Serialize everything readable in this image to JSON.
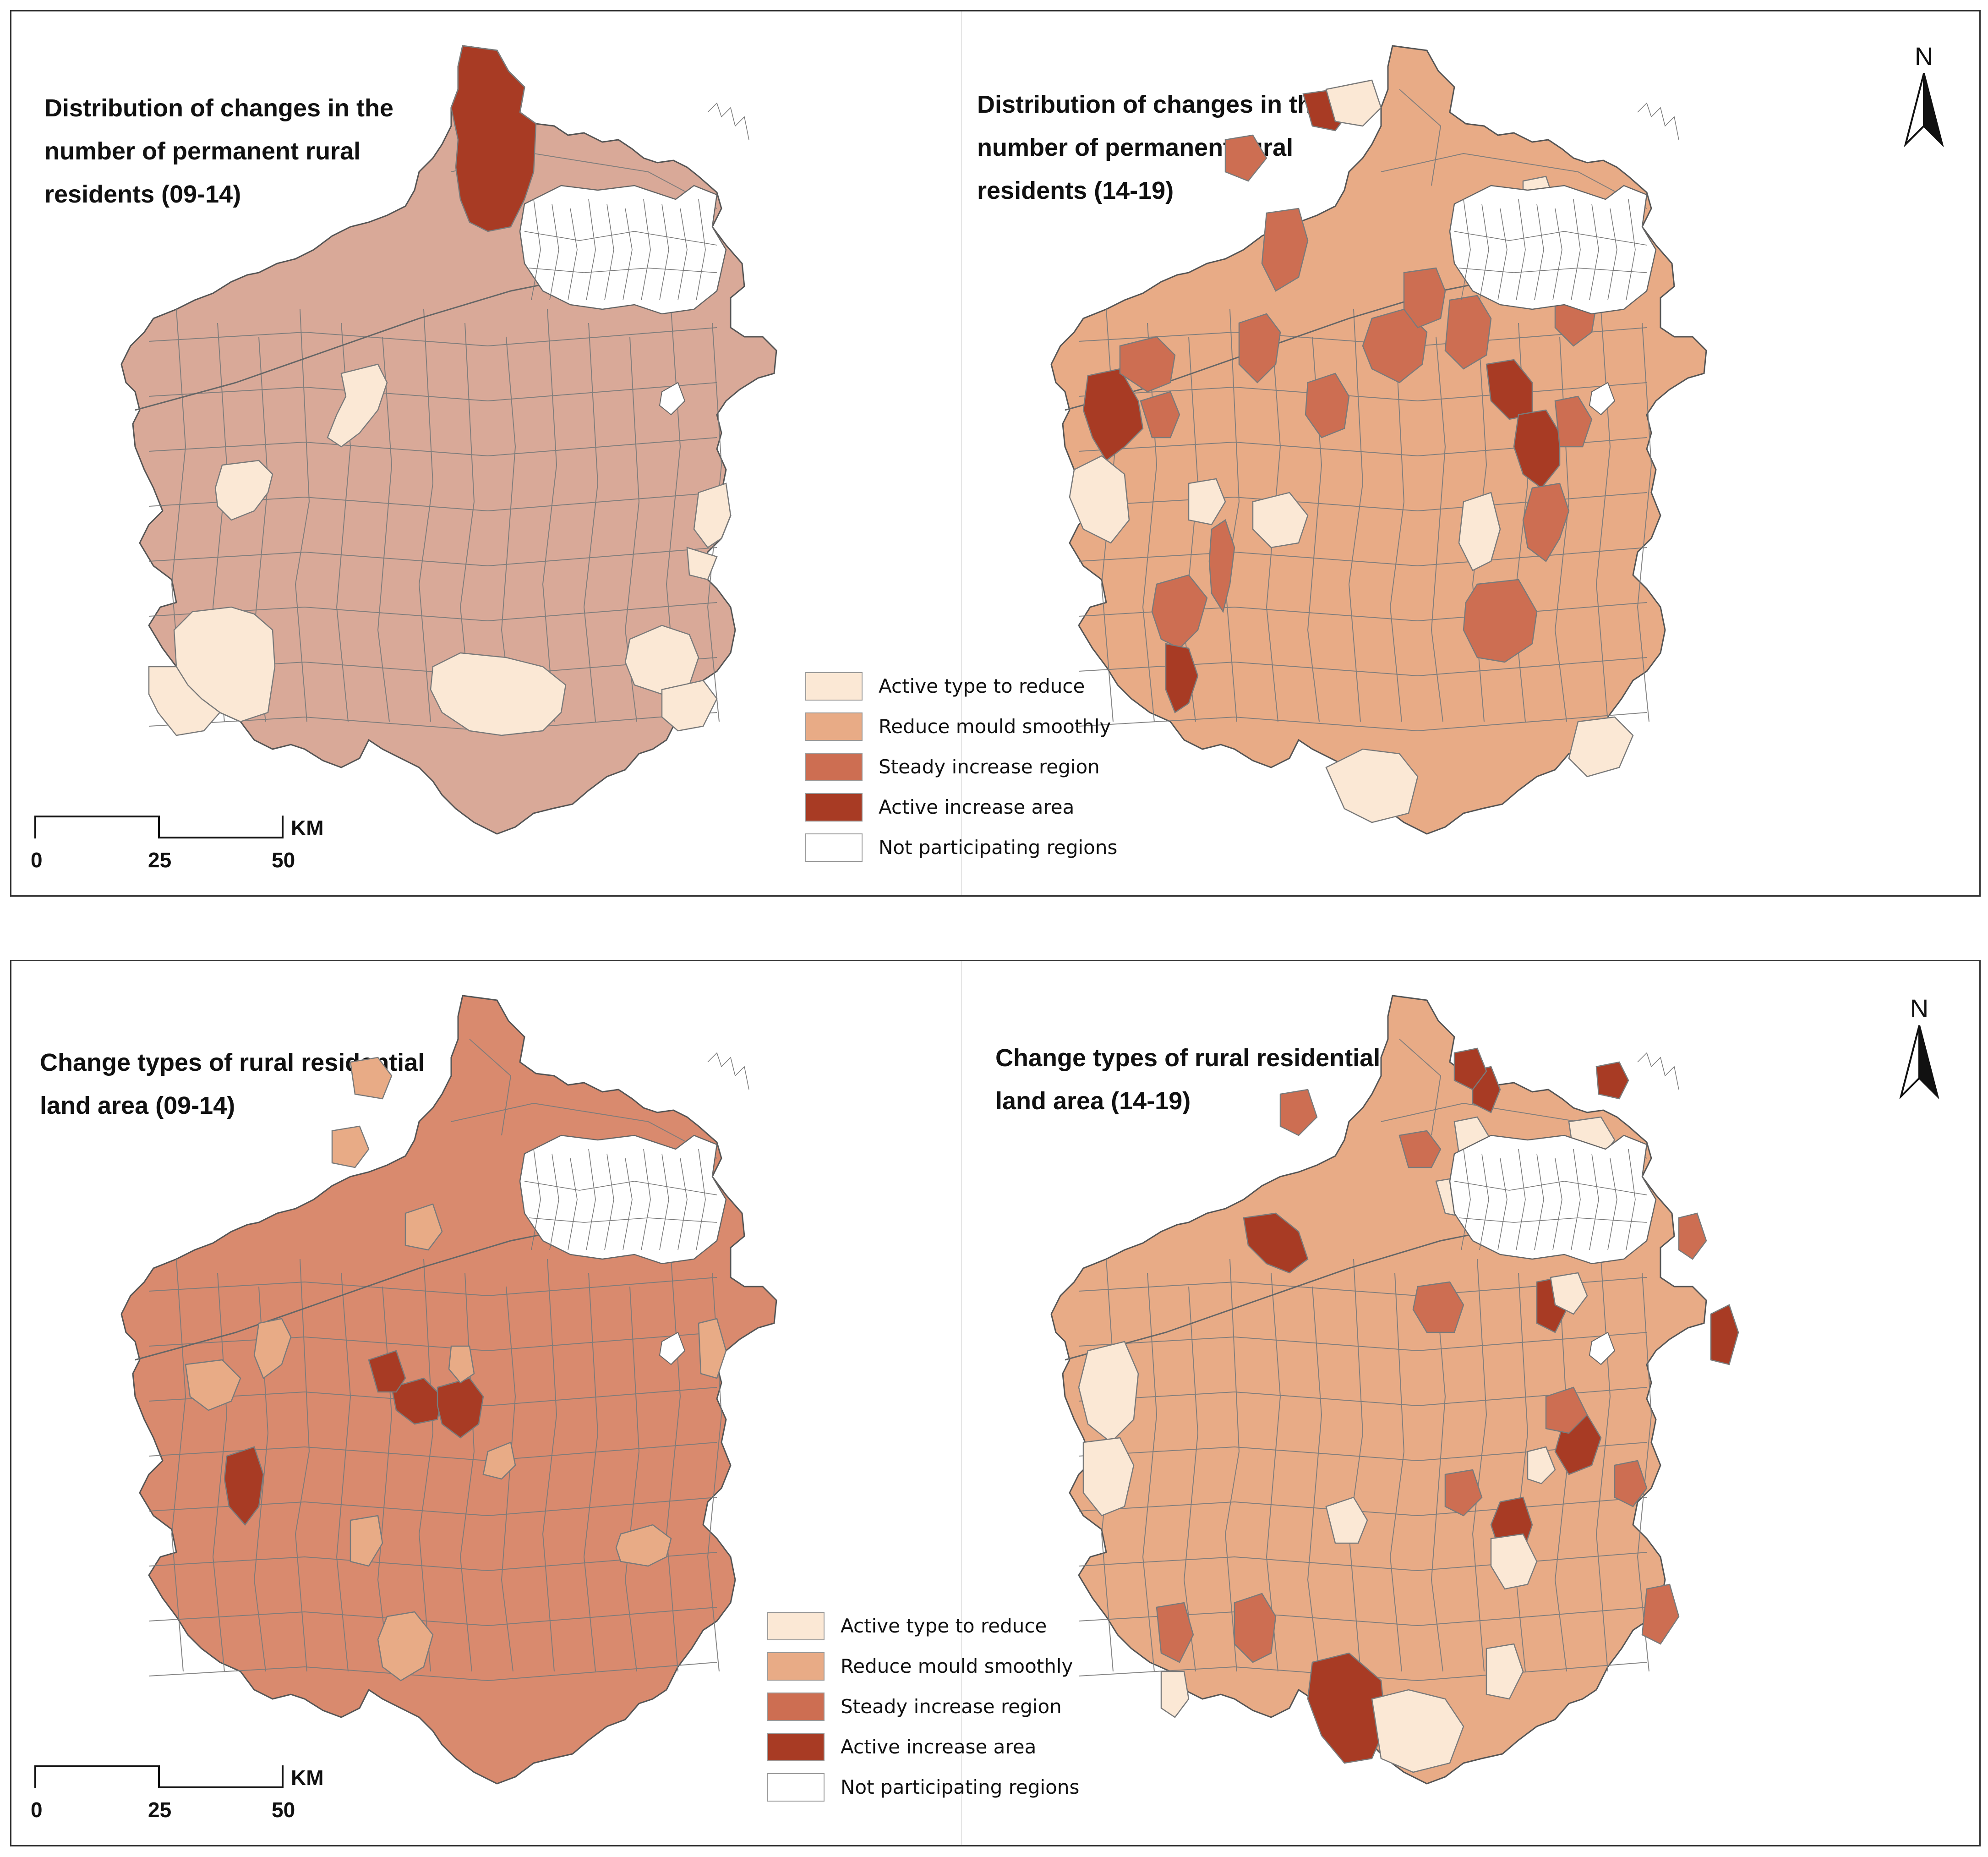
{
  "maps": [
    {
      "title": "Distribution of changes in the\nnumber of permanent rural\nresidents",
      "period": "(09-14)",
      "palette": "p1"
    },
    {
      "title": "Distribution of changes in the\nnumber of permanent rural\nresidents",
      "period": "(14-19)",
      "palette": "p2"
    },
    {
      "title": "Change types of rural residential\nland area",
      "period": "(09-14)",
      "palette": "p3"
    },
    {
      "title": "Change types of rural residential\nland area",
      "period": "(14-19)",
      "palette": "p4"
    }
  ],
  "legend": [
    {
      "label": "Active type to reduce",
      "color": "#fbe8d5"
    },
    {
      "label": "Reduce mould smoothly",
      "color": "#e8ab86"
    },
    {
      "label": "Steady increase region",
      "color": "#cd6e52"
    },
    {
      "label": "Active increase area",
      "color": "#a83b24"
    },
    {
      "label": "Not participating regions",
      "color": "#ffffff"
    }
  ],
  "scale_bar": {
    "ticks": [
      "0",
      "25",
      "50"
    ],
    "unit": "KM"
  },
  "north_arrow": {
    "label": "N"
  },
  "colors": {
    "map1_base": "#d9a998",
    "map3_base": "#d98a6e",
    "boundary": "#7a7a7a",
    "urban_core": "#ffffff"
  }
}
